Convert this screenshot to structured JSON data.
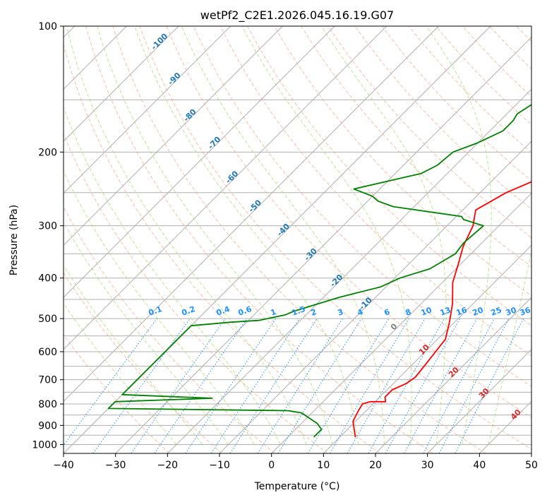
{
  "chart_data": {
    "type": "line",
    "title": "wetPf2_C2E1.2026.045.16.19.G07",
    "xlabel": "Temperature (°C)",
    "ylabel": "Pressure (hPa)",
    "xlim": [
      -40,
      50
    ],
    "ylim": [
      1050,
      100
    ],
    "y_scale": "log",
    "grid": true,
    "x_ticks": [
      -40,
      -30,
      -20,
      -10,
      0,
      10,
      20,
      30,
      40,
      50
    ],
    "y_ticks": [
      100,
      200,
      300,
      400,
      500,
      600,
      700,
      800,
      900,
      1000
    ],
    "series": [
      {
        "role": "temperature",
        "color": "#ff0000",
        "x": [
          13.0,
          9.5,
          8.5,
          8.0,
          9.0,
          12.0,
          11.0,
          11.0,
          12.5,
          13.0,
          12.5,
          12.0,
          11.5,
          9.0,
          6.0,
          2.0,
          -0.5,
          -3.0,
          -5.0,
          -7.0,
          -7.5,
          -5.0,
          1.0,
          5.5,
          8.0,
          11.5,
          14.5,
          16.0,
          16.5,
          16.5,
          16.5,
          18.5,
          18.5
        ],
        "y": [
          960,
          880,
          830,
          800,
          790,
          790,
          770,
          740,
          715,
          690,
          640,
          600,
          560,
          510,
          460,
          410,
          370,
          335,
          300,
          280,
          275,
          250,
          220,
          200,
          185,
          170,
          155,
          140,
          130,
          120,
          110,
          102,
          100
        ]
      },
      {
        "role": "dewpoint",
        "color": "#008000",
        "x": [
          5.0,
          5.0,
          3.0,
          0.0,
          -2.0,
          -5.0,
          -40.0,
          -40.0,
          -22.0,
          -40.0,
          -40.0,
          -33.0,
          -28.0,
          -24.0,
          -23.0,
          -17.0,
          -11.0,
          -9.0,
          -5.0,
          -3.0,
          -3.5,
          -3.0,
          -8.0,
          -9.0,
          -24.0,
          -28.0,
          -30.0,
          -35.0,
          -25.0,
          -23.5,
          -23.0,
          -20.0,
          -17.5,
          -17.5,
          -18.0,
          -17.0,
          -14.0,
          -12.0,
          -10.0,
          -9.0,
          -6.0,
          -4.0,
          -1.0
        ],
        "y": [
          960,
          920,
          890,
          860,
          840,
          830,
          820,
          790,
          775,
          760,
          520,
          510,
          505,
          490,
          480,
          445,
          420,
          400,
          380,
          350,
          330,
          300,
          290,
          285,
          270,
          262,
          255,
          245,
          225,
          215,
          200,
          190,
          178,
          168,
          162,
          154,
          148,
          140,
          133,
          125,
          114,
          105,
          100
        ]
      }
    ],
    "annotations": {
      "dry_adiabats": [
        "-100",
        "-90",
        "-80",
        "-70",
        "-60",
        "-50",
        "-40",
        "-30",
        "-20",
        "-10"
      ],
      "mixing_ratios": [
        "0.1",
        "0.2",
        "0.4",
        "0.6",
        "1",
        "1.5",
        "2",
        "3",
        "4",
        "6",
        "8",
        "10",
        "13",
        "16",
        "20",
        "25",
        "30",
        "36"
      ],
      "red_labels": [
        "10",
        "20",
        "30",
        "40"
      ],
      "zero_label": "0"
    }
  }
}
